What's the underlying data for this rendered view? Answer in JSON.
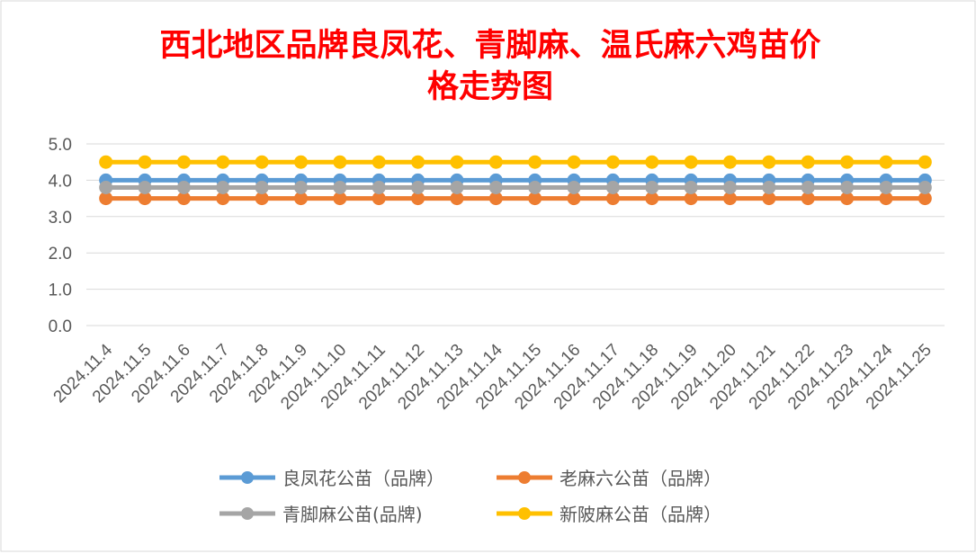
{
  "chart_data": {
    "type": "line",
    "title": "西北地区品牌良凤花、青脚麻、温氏麻六鸡苗价格走势图",
    "title_lines": [
      "西北地区品牌良凤花、青脚麻、温氏麻六鸡苗价",
      "格走势图"
    ],
    "xlabel": "",
    "ylabel": "",
    "ylim": [
      0,
      5
    ],
    "yticks": [
      "0.0",
      "1.0",
      "2.0",
      "3.0",
      "4.0",
      "5.0"
    ],
    "grid": true,
    "legend_position": "bottom",
    "categories": [
      "2024.11.4",
      "2024.11.5",
      "2024.11.6",
      "2024.11.7",
      "2024.11.8",
      "2024.11.9",
      "2024.11.10",
      "2024.11.11",
      "2024.11.12",
      "2024.11.13",
      "2024.11.14",
      "2024.11.15",
      "2024.11.16",
      "2024.11.17",
      "2024.11.18",
      "2024.11.19",
      "2024.11.20",
      "2024.11.21",
      "2024.11.22",
      "2024.11.23",
      "2024.11.24",
      "2024.11.25"
    ],
    "series": [
      {
        "name": "良凤花公苗（品牌）",
        "color": "#5b9bd5",
        "values": [
          4.0,
          4.0,
          4.0,
          4.0,
          4.0,
          4.0,
          4.0,
          4.0,
          4.0,
          4.0,
          4.0,
          4.0,
          4.0,
          4.0,
          4.0,
          4.0,
          4.0,
          4.0,
          4.0,
          4.0,
          4.0,
          4.0
        ]
      },
      {
        "name": "老麻六公苗（品牌）",
        "color": "#ed7d31",
        "values": [
          3.5,
          3.5,
          3.5,
          3.5,
          3.5,
          3.5,
          3.5,
          3.5,
          3.5,
          3.5,
          3.5,
          3.5,
          3.5,
          3.5,
          3.5,
          3.5,
          3.5,
          3.5,
          3.5,
          3.5,
          3.5,
          3.5
        ]
      },
      {
        "name": "青脚麻公苗(品牌)",
        "color": "#a5a5a5",
        "values": [
          3.8,
          3.8,
          3.8,
          3.8,
          3.8,
          3.8,
          3.8,
          3.8,
          3.8,
          3.8,
          3.8,
          3.8,
          3.8,
          3.8,
          3.8,
          3.8,
          3.8,
          3.8,
          3.8,
          3.8,
          3.8,
          3.8
        ]
      },
      {
        "name": "新陂麻公苗（品牌）",
        "color": "#ffc000",
        "values": [
          4.5,
          4.5,
          4.5,
          4.5,
          4.5,
          4.5,
          4.5,
          4.5,
          4.5,
          4.5,
          4.5,
          4.5,
          4.5,
          4.5,
          4.5,
          4.5,
          4.5,
          4.5,
          4.5,
          4.5,
          4.5,
          4.5
        ]
      }
    ]
  }
}
